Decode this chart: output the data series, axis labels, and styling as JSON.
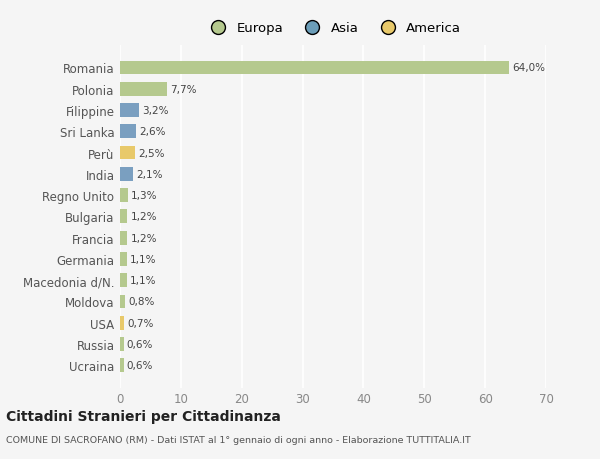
{
  "countries": [
    "Romania",
    "Polonia",
    "Filippine",
    "Sri Lanka",
    "Perù",
    "India",
    "Regno Unito",
    "Bulgaria",
    "Francia",
    "Germania",
    "Macedonia d/N.",
    "Moldova",
    "USA",
    "Russia",
    "Ucraina"
  ],
  "values": [
    64.0,
    7.7,
    3.2,
    2.6,
    2.5,
    2.1,
    1.3,
    1.2,
    1.2,
    1.1,
    1.1,
    0.8,
    0.7,
    0.6,
    0.6
  ],
  "labels": [
    "64,0%",
    "7,7%",
    "3,2%",
    "2,6%",
    "2,5%",
    "2,1%",
    "1,3%",
    "1,2%",
    "1,2%",
    "1,1%",
    "1,1%",
    "0,8%",
    "0,7%",
    "0,6%",
    "0,6%"
  ],
  "continents": [
    "Europa",
    "Europa",
    "Asia",
    "Asia",
    "America",
    "Asia",
    "Europa",
    "Europa",
    "Europa",
    "Europa",
    "Europa",
    "Europa",
    "America",
    "Europa",
    "Europa"
  ],
  "colors": {
    "Europa": "#b5c98e",
    "Asia": "#7a9fc0",
    "America": "#e8c96a"
  },
  "legend_colors": {
    "Europa": "#b5c98e",
    "Asia": "#6b9db8",
    "America": "#e8c96a"
  },
  "xlim": [
    0,
    70
  ],
  "xticks": [
    0,
    10,
    20,
    30,
    40,
    50,
    60,
    70
  ],
  "title": "Cittadini Stranieri per Cittadinanza",
  "subtitle": "COMUNE DI SACROFANO (RM) - Dati ISTAT al 1° gennaio di ogni anno - Elaborazione TUTTITALIA.IT",
  "bg_color": "#f5f5f5",
  "grid_color": "#ffffff",
  "bar_height": 0.65
}
